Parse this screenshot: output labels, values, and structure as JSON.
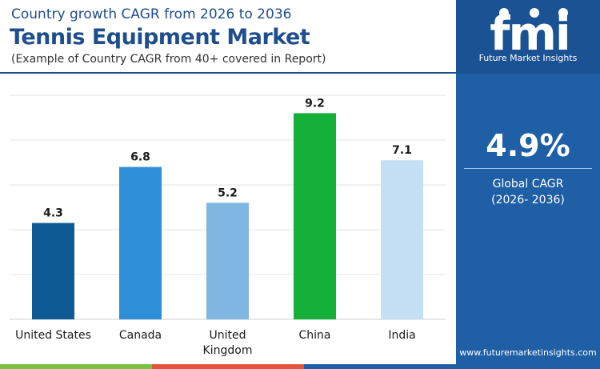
{
  "header": {
    "subtitle": "Country growth CAGR from 2026 to 2036",
    "title": "Tennis Equipment Market",
    "note": "(Example of Country CAGR from 40+ covered in Report)"
  },
  "sidebar": {
    "logo_text": "Future Market Insights",
    "stat_value": "4.9%",
    "stat_label_line1": "Global CAGR",
    "stat_label_line2": "(2026- 2036)",
    "website": "www.futuremarketinsights.com"
  },
  "chart_data": {
    "type": "bar",
    "title": "Tennis Equipment Market",
    "categories": [
      "United States",
      "Canada",
      "United Kingdom",
      "China",
      "India"
    ],
    "category_lines": [
      [
        "United States"
      ],
      [
        "Canada"
      ],
      [
        "United",
        "Kingdom"
      ],
      [
        "China"
      ],
      [
        "India"
      ]
    ],
    "values": [
      4.3,
      6.8,
      5.2,
      9.2,
      7.1
    ],
    "value_labels": [
      "4.3",
      "6.8",
      "5.2",
      "9.2",
      "7.1"
    ],
    "bar_colors": [
      "#0d5a94",
      "#2f8fd6",
      "#7fb6e2",
      "#14b03a",
      "#c5e0f5"
    ],
    "ylim": [
      0,
      10
    ],
    "grid": true,
    "legend": "none",
    "xlabel": "",
    "ylabel": ""
  },
  "bottom_strip_colors": [
    "#7cc242",
    "#e2543c",
    "#1f5fa6",
    "#1f5fa6"
  ]
}
